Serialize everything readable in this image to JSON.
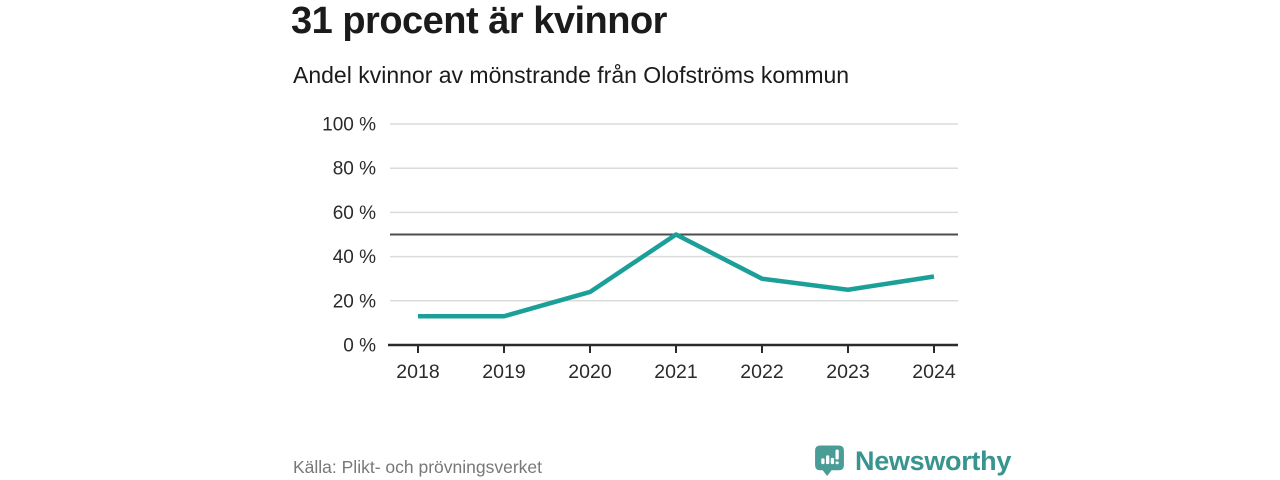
{
  "header": {
    "title": "31 procent är kvinnor",
    "subtitle": "Andel kvinnor av mönstrande från Olofströms kommun"
  },
  "chart_data": {
    "type": "line",
    "title": "31 procent är kvinnor",
    "subtitle": "Andel kvinnor av mönstrande från Olofströms kommun",
    "x": [
      2018,
      2019,
      2020,
      2021,
      2022,
      2023,
      2024
    ],
    "series": [
      {
        "name": "Andel kvinnor av mönstrande",
        "unit": "%",
        "values": [
          13,
          13,
          24,
          50,
          30,
          25,
          31
        ]
      }
    ],
    "ylim": [
      0,
      100
    ],
    "y_ticks": [
      {
        "value": 100,
        "label": "100 %"
      },
      {
        "value": 80,
        "label": "80 %"
      },
      {
        "value": 60,
        "label": "60 %"
      },
      {
        "value": 40,
        "label": "40 %"
      },
      {
        "value": 20,
        "label": "20 %"
      },
      {
        "value": 0,
        "label": "0 %"
      }
    ],
    "reference_line": {
      "value": 50
    },
    "grid": "horizontal",
    "legend": "none",
    "line_color": "#1AA098"
  },
  "footer": {
    "source": "Källa: Plikt- och prövningsverket",
    "brand": "Newsworthy"
  },
  "colors": {
    "line": "#1AA098",
    "brand_teal": "#4A9C96",
    "brand_text": "#37948E",
    "title_text": "#1B1B1B",
    "axis_text": "#2B2B2B",
    "source_text": "#787878",
    "gridline": "#DBDBDB",
    "reference_line": "#4D4D4D",
    "axis_line": "#2B2B2B"
  }
}
